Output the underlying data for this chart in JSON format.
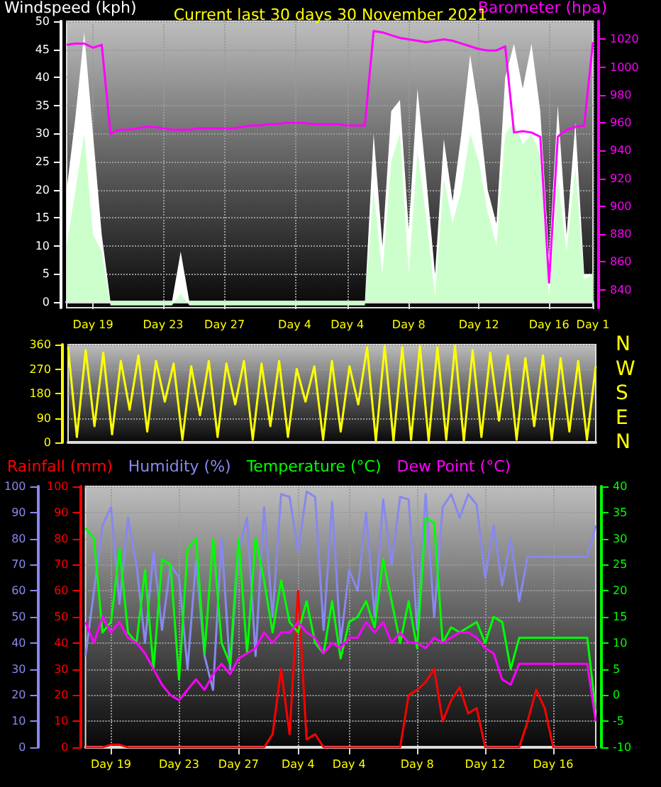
{
  "chart_data": [
    {
      "type": "area",
      "title": "Current last 30 days 30 November 2021",
      "ylabel": "Windspeed (kph)",
      "y2label": "Barometer (hpa)",
      "categories": [
        null,
        null,
        null,
        "Day 19",
        null,
        null,
        null,
        null,
        null,
        null,
        null,
        "Day 23",
        null,
        null,
        null,
        null,
        null,
        null,
        "Day 27",
        null,
        null,
        null,
        null,
        null,
        null,
        null,
        "Day 4",
        null,
        null,
        null,
        null,
        null,
        "Day 4",
        null,
        null,
        null,
        null,
        null,
        null,
        "Day 8",
        null,
        null,
        null,
        null,
        null,
        null,
        null,
        "Day 12",
        null,
        null,
        null,
        null,
        null,
        null,
        null,
        "Day 16",
        null,
        null,
        null,
        null,
        "Day 1"
      ],
      "ylim": [
        -1,
        50
      ],
      "yticks": [
        0,
        5,
        10,
        15,
        20,
        25,
        30,
        35,
        40,
        45,
        50
      ],
      "y2lim": [
        827,
        1033
      ],
      "y2ticks": [
        840,
        860,
        880,
        900,
        920,
        940,
        960,
        980,
        1000,
        1020
      ],
      "grid": true,
      "marker": "none",
      "series": [
        {
          "color": "#ffffff",
          "values": [
            20,
            33,
            48,
            30,
            12,
            0,
            0,
            0,
            0,
            0,
            0,
            0,
            0,
            9,
            0,
            0,
            0,
            0,
            0,
            0,
            0,
            0,
            0,
            0,
            0,
            0,
            0,
            0,
            0,
            0,
            0,
            0,
            0,
            0,
            0,
            30,
            10,
            34,
            36,
            13,
            38,
            22,
            5,
            29,
            18,
            30,
            44,
            34,
            20,
            14,
            40,
            46,
            38,
            46,
            34,
            8,
            35,
            12,
            32,
            5,
            5
          ]
        },
        {
          "color": "#ccffcc",
          "values": [
            10,
            20,
            30,
            12,
            9,
            -0.6,
            -0.6,
            -0.6,
            -0.6,
            -0.6,
            -0.6,
            -0.6,
            -0.6,
            1.5,
            -0.6,
            -0.6,
            -0.6,
            -0.6,
            -0.6,
            -0.6,
            -0.6,
            -0.6,
            -0.6,
            -0.6,
            -0.6,
            -0.6,
            -0.6,
            -0.6,
            -0.6,
            -0.6,
            -0.6,
            -0.6,
            -0.6,
            -0.6,
            -0.6,
            20,
            5,
            25,
            30,
            5,
            27,
            15,
            1,
            22,
            14,
            20,
            30,
            25,
            16,
            10,
            30,
            32,
            28,
            30,
            26,
            0.5,
            22,
            9,
            24,
            4,
            5
          ]
        },
        {
          "type": "line",
          "axis": "y2",
          "color": "#ff00ff",
          "values": [
            1016,
            1017,
            1017,
            1014,
            1016,
            952,
            955,
            955,
            956,
            957,
            957,
            956,
            955,
            955,
            955,
            956,
            956,
            956,
            956,
            956,
            957,
            958,
            958,
            959,
            959,
            960,
            960,
            960,
            959,
            959,
            959,
            959,
            958,
            958,
            958,
            1026,
            1025,
            1023,
            1021,
            1020,
            1019,
            1018,
            1019,
            1020,
            1019,
            1017,
            1015,
            1013,
            1012,
            1012,
            1015,
            953,
            954,
            953,
            950,
            845,
            950,
            955,
            957,
            958,
            1018
          ]
        }
      ]
    },
    {
      "type": "line",
      "categories": [
        null,
        null,
        null,
        null,
        null,
        null,
        null,
        null,
        null,
        null,
        null,
        null,
        null,
        null,
        null,
        null,
        null,
        null,
        null,
        null,
        null,
        null,
        null,
        null,
        null,
        null,
        null,
        null,
        null,
        null,
        null,
        null,
        null,
        null,
        null,
        null,
        null,
        null,
        null,
        null,
        null,
        null,
        null,
        null,
        null,
        null,
        null,
        null,
        null,
        null,
        null,
        null,
        null,
        null,
        null,
        null,
        null,
        null,
        null,
        null,
        null
      ],
      "ylim": [
        0,
        360
      ],
      "yticks": [
        0,
        90,
        180,
        270,
        360
      ],
      "grid": true,
      "marker": "none",
      "annotations": [
        "N",
        "W",
        "S",
        "E",
        "N"
      ],
      "series": [
        {
          "color": "#ffff00",
          "values": [
            350,
            20,
            340,
            60,
            330,
            30,
            300,
            120,
            320,
            40,
            300,
            150,
            290,
            10,
            280,
            100,
            300,
            20,
            290,
            140,
            300,
            10,
            290,
            60,
            300,
            20,
            270,
            150,
            280,
            10,
            300,
            40,
            280,
            140,
            350,
            5,
            355,
            5,
            350,
            10,
            355,
            5,
            350,
            10,
            355,
            5,
            340,
            20,
            330,
            80,
            320,
            10,
            310,
            60,
            320,
            10,
            310,
            40,
            300,
            10,
            280
          ]
        }
      ]
    },
    {
      "type": "line",
      "legend": "top",
      "categories": [
        null,
        null,
        null,
        "Day 19",
        null,
        null,
        null,
        null,
        null,
        null,
        null,
        "Day 23",
        null,
        null,
        null,
        null,
        null,
        null,
        "Day 27",
        null,
        null,
        null,
        null,
        null,
        null,
        "Day 4",
        null,
        null,
        null,
        null,
        null,
        "Day 4",
        null,
        null,
        null,
        null,
        null,
        null,
        null,
        "Day 8",
        null,
        null,
        null,
        null,
        null,
        null,
        null,
        "Day 12",
        null,
        null,
        null,
        null,
        null,
        null,
        null,
        "Day 16",
        null,
        null,
        null,
        null,
        null
      ],
      "ylim": [
        0,
        100
      ],
      "yticks": [
        0,
        10,
        20,
        30,
        40,
        50,
        60,
        70,
        80,
        90,
        100
      ],
      "y2lim": [
        0,
        100
      ],
      "y2ticks": [
        0,
        10,
        20,
        30,
        40,
        50,
        60,
        70,
        80,
        90,
        100
      ],
      "y3lim": [
        -10,
        40
      ],
      "y3ticks": [
        -10,
        -5,
        0,
        5,
        10,
        15,
        20,
        25,
        30,
        35,
        40
      ],
      "grid": true,
      "marker": "none",
      "series": [
        {
          "name": "Rainfall (mm)",
          "axis": "y2",
          "color": "#ff0000",
          "values": [
            0,
            0,
            0,
            1,
            1,
            0,
            0,
            0,
            0,
            0,
            0,
            0,
            0,
            0,
            0,
            0,
            0,
            0,
            0,
            0,
            0,
            0,
            5,
            30,
            5,
            60,
            3,
            5,
            0,
            0,
            0,
            0,
            0,
            0,
            0,
            0,
            0,
            0,
            20,
            22,
            25,
            30,
            10,
            18,
            23,
            13,
            15,
            0,
            0,
            0,
            0,
            0,
            10,
            22,
            15,
            0,
            0,
            0,
            0,
            0,
            0
          ]
        },
        {
          "name": "Humidity (%)",
          "color": "#8888ee",
          "values": [
            35,
            60,
            85,
            92,
            55,
            88,
            70,
            40,
            75,
            45,
            70,
            65,
            30,
            72,
            35,
            22,
            80,
            30,
            75,
            88,
            35,
            92,
            50,
            97,
            96,
            75,
            98,
            96,
            45,
            94,
            40,
            68,
            60,
            90,
            50,
            95,
            70,
            96,
            95,
            45,
            97,
            50,
            92,
            97,
            88,
            97,
            93,
            65,
            85,
            62,
            80,
            56,
            73,
            73,
            73,
            73,
            73,
            73,
            73,
            73,
            85
          ]
        },
        {
          "name": "Temperature (°C)",
          "axis": "y3",
          "color": "#00ff00",
          "values": [
            32,
            30,
            12,
            14,
            28,
            12,
            10,
            24,
            5,
            26,
            25,
            3,
            28,
            30,
            8,
            30,
            10,
            6,
            30,
            8,
            30,
            22,
            12,
            22,
            14,
            12,
            18,
            10,
            8,
            18,
            7,
            14,
            15,
            18,
            13,
            26,
            18,
            10,
            18,
            9,
            34,
            33,
            10,
            13,
            12,
            13,
            14,
            10,
            15,
            14,
            5,
            11,
            11,
            11,
            11,
            11,
            11,
            11,
            11,
            11,
            -3
          ]
        },
        {
          "name": "Dew Point (°C)",
          "axis": "y3",
          "color": "#ff00ff",
          "values": [
            14,
            10,
            15,
            12,
            14,
            11,
            10,
            8,
            5,
            2,
            0,
            -1,
            1,
            3,
            1,
            4,
            6,
            4,
            7,
            8,
            9,
            12,
            10,
            12,
            12,
            14,
            12,
            11,
            8,
            10,
            9,
            11,
            11,
            14,
            12,
            14,
            10,
            12,
            10,
            10,
            9,
            11,
            10,
            11,
            12,
            12,
            11,
            9,
            8,
            3,
            2,
            6,
            6,
            6,
            6,
            6,
            6,
            6,
            6,
            6,
            -5
          ]
        }
      ]
    }
  ]
}
